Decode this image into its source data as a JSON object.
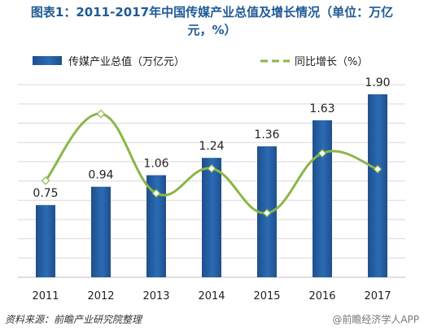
{
  "title_line1": "图表1：2011-2017年中国传媒产业总值及增长情况（单位：万亿",
  "title_line2": "元，%）",
  "source": "资料来源：前瞻产业研究院整理",
  "watermark": "@前瞻经济学人APP",
  "colors": {
    "bar": "#2b6cb5",
    "bar_dark": "#1e4f8c",
    "line": "#8ab648",
    "marker": "#ffffff",
    "grid": "#d9d9d9",
    "title": "#1f5a96"
  },
  "chart_data": {
    "type": "bar",
    "categories": [
      "2011",
      "2012",
      "2013",
      "2014",
      "2015",
      "2016",
      "2017"
    ],
    "series": [
      {
        "name": "传媒产业总值（万亿元）",
        "type": "bar",
        "values": [
          0.75,
          0.94,
          1.06,
          1.24,
          1.36,
          1.63,
          1.9
        ],
        "labels": [
          "0.75",
          "0.94",
          "1.06",
          "1.24",
          "1.36",
          "1.63",
          "1.90"
        ]
      },
      {
        "name": "同比增长（%）",
        "type": "line",
        "smooth": true,
        "axis": "secondary",
        "values": [
          14.8,
          25.3,
          12.8,
          16.7,
          9.7,
          19.1,
          16.6
        ]
      }
    ],
    "ylim": [
      0,
      2.0
    ],
    "y2lim": [
      0,
      30
    ],
    "grid": true,
    "legend": "top"
  }
}
